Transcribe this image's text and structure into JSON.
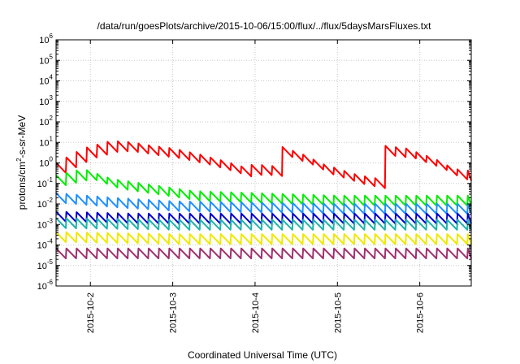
{
  "chart_data": {
    "type": "line",
    "title": "/data/run/goesPlots/archive/2015-10-06/15:00/flux/../flux/5daysMarsFluxes.txt",
    "xlabel": "Coordinated Universal Time (UTC)",
    "ylabel_base": "protons/cm",
    "ylabel_sup": "2",
    "ylabel_rest": "-s-sr-MeV",
    "yscale": "log",
    "ylim_exp": [
      -6,
      6
    ],
    "xlim": [
      "2015-10-01T14:00",
      "2015-10-06T15:00"
    ],
    "x_ticks": [
      "2015-10-2",
      "2015-10-3",
      "2015-10-4",
      "2015-10-5",
      "2015-10-6"
    ],
    "grid": true,
    "legend": "none",
    "series": [
      {
        "color": "#ff0000",
        "sawtooth": true,
        "points": [
          [
            "2015-10-01T14:00",
            0.6
          ],
          [
            "2015-10-01T22:00",
            3
          ],
          [
            "2015-10-02T06:00",
            7
          ],
          [
            "2015-10-02T12:00",
            6
          ],
          [
            "2015-10-02T18:00",
            4
          ],
          [
            "2015-10-03T00:00",
            3
          ],
          [
            "2015-10-03T08:00",
            1.5
          ],
          [
            "2015-10-03T14:00",
            0.8
          ],
          [
            "2015-10-03T20:00",
            0.4
          ],
          [
            "2015-10-04T00:00",
            0.5
          ],
          [
            "2015-10-04T06:00",
            0.4
          ],
          [
            "2015-10-04T08:00",
            3.5
          ],
          [
            "2015-10-04T14:00",
            1.5
          ],
          [
            "2015-10-04T20:00",
            0.5
          ],
          [
            "2015-10-05T06:00",
            0.15
          ],
          [
            "2015-10-05T12:00",
            0.1
          ],
          [
            "2015-10-05T14:00",
            4
          ],
          [
            "2015-10-05T20:00",
            3
          ],
          [
            "2015-10-06T04:00",
            1
          ],
          [
            "2015-10-06T10:00",
            0.3
          ],
          [
            "2015-10-06T14:00",
            0.25
          ],
          [
            "2015-10-06T15:00",
            2
          ]
        ]
      },
      {
        "color": "#00ee00",
        "sawtooth": true,
        "points": [
          [
            "2015-10-01T14:00",
            0.15
          ],
          [
            "2015-10-01T22:00",
            0.3
          ],
          [
            "2015-10-02T06:00",
            0.1
          ],
          [
            "2015-10-02T18:00",
            0.05
          ],
          [
            "2015-10-03T06:00",
            0.025
          ],
          [
            "2015-10-04T00:00",
            0.02
          ],
          [
            "2015-10-05T00:00",
            0.015
          ],
          [
            "2015-10-06T00:00",
            0.015
          ],
          [
            "2015-10-06T15:00",
            0.015
          ]
        ]
      },
      {
        "color": "#1e90ff",
        "sawtooth": true,
        "points": [
          [
            "2015-10-01T14:00",
            0.02
          ],
          [
            "2015-10-02T06:00",
            0.012
          ],
          [
            "2015-10-03T00:00",
            0.008
          ],
          [
            "2015-10-04T00:00",
            0.007
          ],
          [
            "2015-10-05T00:00",
            0.006
          ],
          [
            "2015-10-06T00:00",
            0.006
          ],
          [
            "2015-10-06T15:00",
            0.006
          ]
        ]
      },
      {
        "color": "#0000cc",
        "sawtooth": true,
        "points": [
          [
            "2015-10-01T14:00",
            0.0025
          ],
          [
            "2015-10-02T12:00",
            0.002
          ],
          [
            "2015-10-04T00:00",
            0.002
          ],
          [
            "2015-10-06T15:00",
            0.002
          ]
        ]
      },
      {
        "color": "#20b2aa",
        "sawtooth": true,
        "points": [
          [
            "2015-10-01T14:00",
            0.0012
          ],
          [
            "2015-10-03T00:00",
            0.001
          ],
          [
            "2015-10-06T15:00",
            0.001
          ]
        ]
      },
      {
        "color": "#f0e800",
        "sawtooth": true,
        "points": [
          [
            "2015-10-01T14:00",
            0.00025
          ],
          [
            "2015-10-03T00:00",
            0.0002
          ],
          [
            "2015-10-06T15:00",
            0.0002
          ]
        ]
      },
      {
        "color": "#a0306e",
        "sawtooth": true,
        "points": [
          [
            "2015-10-01T14:00",
            4e-05
          ],
          [
            "2015-10-03T00:00",
            4e-05
          ],
          [
            "2015-10-06T15:00",
            4e-05
          ]
        ]
      }
    ]
  }
}
